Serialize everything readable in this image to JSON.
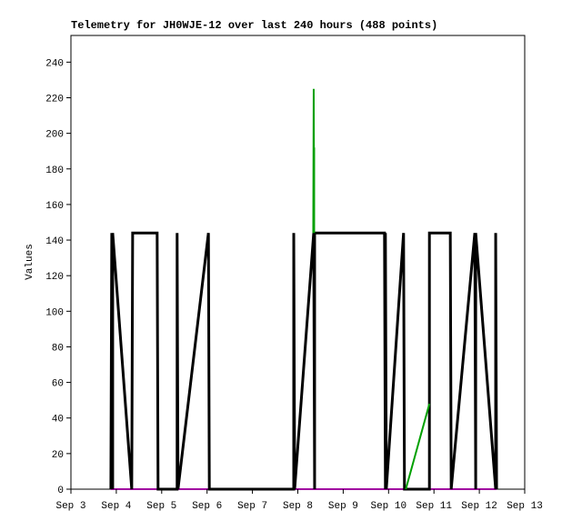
{
  "chart_data": {
    "type": "line",
    "title": "Telemetry for JH0WJE-12 over last 240 hours (488 points)",
    "y_label": "Values",
    "xlim": [
      3,
      13
    ],
    "ylim": [
      0,
      255
    ],
    "xticks": [
      {
        "value": 3,
        "label": "Sep 3"
      },
      {
        "value": 4,
        "label": "Sep 4"
      },
      {
        "value": 5,
        "label": "Sep 5"
      },
      {
        "value": 6,
        "label": "Sep 6"
      },
      {
        "value": 7,
        "label": "Sep 7"
      },
      {
        "value": 8,
        "label": "Sep 8"
      },
      {
        "value": 9,
        "label": "Sep 9"
      },
      {
        "value": 10,
        "label": "Sep 10"
      },
      {
        "value": 11,
        "label": "Sep 11"
      },
      {
        "value": 12,
        "label": "Sep 12"
      },
      {
        "value": 13,
        "label": "Sep 13"
      }
    ],
    "yticks": [
      0,
      20,
      40,
      60,
      80,
      100,
      120,
      140,
      160,
      180,
      200,
      220,
      240
    ],
    "series": [
      {
        "color": "#a000a0",
        "width": 2,
        "x": [
          3.88,
          12.38
        ],
        "values": [
          0,
          0
        ]
      },
      {
        "color": "#000000",
        "width": 3,
        "x": [
          3.88,
          3.9,
          3.92,
          3.92,
          4.34,
          4.36,
          4.9,
          4.92,
          5.34,
          5.34,
          5.36,
          6.03,
          6.05,
          7.91,
          7.91,
          7.93,
          8.35,
          8.37,
          8.37,
          9.91,
          9.93,
          9.93,
          9.95,
          10.33,
          10.35,
          10.9,
          10.9,
          11.36,
          11.38,
          11.9,
          11.92,
          11.92,
          12.36,
          12.36,
          12.38
        ],
        "values": [
          0,
          144,
          0,
          144,
          0,
          144,
          144,
          0,
          0,
          144,
          0,
          144,
          0,
          0,
          144,
          0,
          144,
          0,
          144,
          144,
          0,
          144,
          0,
          144,
          0,
          0,
          144,
          144,
          0,
          144,
          0,
          144,
          0,
          144,
          0
        ]
      },
      {
        "color": "#00a000",
        "width": 2,
        "x": [
          8.34,
          8.35,
          8.36,
          8.36,
          null,
          10.38,
          10.9
        ],
        "values": [
          144,
          225,
          144,
          192,
          null,
          0,
          48
        ]
      }
    ]
  }
}
